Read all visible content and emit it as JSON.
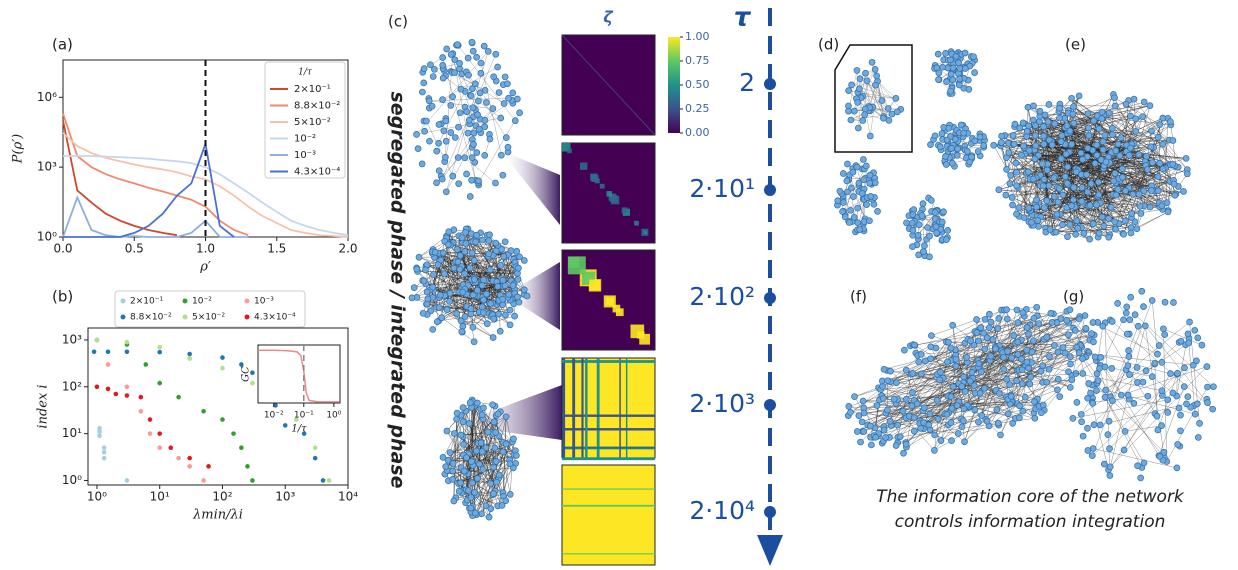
{
  "chart_data": [
    {
      "type": "line",
      "panel_label": "(a)",
      "xlabel": "ρ′",
      "ylabel": "P(ρ′)",
      "log_y": true,
      "vline": 1,
      "legend_title": "1/τ",
      "legend": "upper right",
      "x": [
        0,
        0.1,
        0.2,
        0.3,
        0.4,
        0.5,
        0.6,
        0.7,
        0.8,
        0.9,
        1.0,
        1.1,
        1.2,
        1.3,
        1.4,
        1.5,
        1.6,
        1.7,
        1.8,
        1.9,
        2.0
      ],
      "xlim": [
        0,
        2
      ],
      "ylim": [
        1,
        40000000
      ],
      "xticks": [
        {
          "value": 0,
          "label": "0.0"
        },
        0.5,
        {
          "value": 1,
          "label": "1.0"
        },
        1.5,
        {
          "value": 2,
          "label": "2.0"
        }
      ],
      "yticks": [
        {
          "value": 1,
          "label": "10⁰"
        },
        {
          "value": 1000,
          "label": "10³"
        },
        {
          "value": 1000000,
          "label": "10⁶"
        }
      ],
      "series": [
        {
          "name": "2×10⁻¹",
          "color": "#d2452f",
          "values": [
            100000,
            100,
            30,
            10,
            5,
            3,
            2,
            1.5,
            1.2,
            null,
            null,
            null,
            null,
            null,
            null,
            null,
            null,
            null,
            null,
            null,
            null
          ]
        },
        {
          "name": "8.8×10⁻²",
          "color": "#ee8a6a",
          "values": [
            200000,
            3000,
            1000,
            500,
            300,
            200,
            130,
            90,
            60,
            40,
            20,
            5,
            2,
            1.2,
            null,
            null,
            null,
            null,
            null,
            null,
            null
          ]
        },
        {
          "name": "5×10⁻²",
          "color": "#f6c2a8",
          "values": [
            30000,
            8000,
            4000,
            2500,
            1800,
            1300,
            1000,
            800,
            600,
            400,
            300,
            150,
            60,
            20,
            8,
            4,
            2,
            1.5,
            1.2,
            1.1,
            1
          ]
        },
        {
          "name": "10⁻²",
          "color": "#c6d6ee",
          "values": [
            3000,
            3000,
            3000,
            2800,
            2700,
            2500,
            2300,
            2000,
            1800,
            1500,
            1000,
            500,
            200,
            80,
            30,
            12,
            5,
            3,
            2,
            1.5,
            1.2
          ]
        },
        {
          "name": "10⁻³",
          "color": "#8eaee2",
          "values": [
            1,
            50,
            2,
            1.2,
            1,
            1.1,
            1,
            1,
            1,
            1.5,
            5,
            1,
            1,
            1,
            null,
            null,
            null,
            null,
            null,
            null,
            null
          ]
        },
        {
          "name": "4.3×10⁻⁴",
          "color": "#4a6fd6",
          "values": [
            1,
            1,
            1,
            1,
            1,
            1.5,
            3,
            10,
            60,
            200,
            10000,
            3,
            1,
            null,
            null,
            null,
            null,
            null,
            null,
            null,
            null
          ]
        }
      ]
    },
    {
      "type": "scatter",
      "panel_label": "(b)",
      "xlabel": "λmin/λi",
      "ylabel": "index i",
      "log_x": true,
      "log_y": true,
      "legend": "upper center",
      "xlim": [
        0.72,
        10000
      ],
      "ylim": [
        0.8,
        1800
      ],
      "xticks": [
        {
          "value": 1,
          "label": "10⁰"
        },
        {
          "value": 10,
          "label": "10¹"
        },
        {
          "value": 100,
          "label": "10²"
        },
        {
          "value": 1000,
          "label": "10³"
        },
        {
          "value": 10000,
          "label": "10⁴"
        }
      ],
      "yticks": [
        {
          "value": 1,
          "label": "10⁰"
        },
        {
          "value": 10,
          "label": "10¹"
        },
        {
          "value": 100,
          "label": "10²"
        },
        {
          "value": 1000,
          "label": "10³"
        }
      ],
      "series": [
        {
          "name": "2×10⁻¹",
          "color": "#a6cee3",
          "x": [
            1.1,
            1.1,
            1.1,
            1.3,
            1.3,
            1.3,
            3
          ],
          "values": [
            13,
            11,
            9,
            5,
            4,
            3,
            1
          ]
        },
        {
          "name": "8.8×10⁻²",
          "color": "#1f78b4",
          "x": [
            0.9,
            1.5,
            3,
            10,
            30,
            100,
            200,
            300,
            700,
            1000,
            2000,
            3000,
            4000
          ],
          "values": [
            560,
            560,
            560,
            550,
            500,
            420,
            300,
            200,
            40,
            15,
            10,
            3,
            1
          ]
        },
        {
          "name": "10⁻²",
          "color": "#33a02c",
          "x": [
            1,
            3,
            6,
            10,
            20,
            50,
            100,
            150,
            200,
            250,
            300
          ],
          "values": [
            1000,
            800,
            300,
            120,
            60,
            30,
            20,
            10,
            5,
            2,
            1
          ]
        },
        {
          "name": "5×10⁻²",
          "color": "#b2df8a",
          "x": [
            1,
            3,
            10,
            30,
            100,
            300,
            1000,
            1500,
            3000,
            5000
          ],
          "values": [
            1000,
            900,
            700,
            400,
            250,
            120,
            50,
            20,
            5,
            1
          ]
        },
        {
          "name": "10⁻³",
          "color": "#fb9a99",
          "x": [
            1.5,
            3,
            5,
            7,
            10,
            20,
            30,
            50
          ],
          "values": [
            300,
            100,
            30,
            10,
            5,
            3,
            2,
            1
          ]
        },
        {
          "name": "4.3×10⁻⁴",
          "color": "#e31a1c",
          "x": [
            1,
            1.5,
            2,
            3,
            5,
            7,
            10,
            15,
            30,
            60
          ],
          "values": [
            100,
            90,
            70,
            65,
            60,
            20,
            10,
            5,
            3,
            2
          ]
        }
      ]
    },
    {
      "type": "line",
      "xlabel": "1/τ",
      "ylabel": "GC",
      "log_x": true,
      "vline": 0.1,
      "x": [
        0.003,
        0.01,
        0.03,
        0.06,
        0.08,
        0.1,
        0.12,
        0.15,
        0.3,
        1,
        1.5
      ],
      "xlim": [
        0.003,
        1.6
      ],
      "ylim": [
        0,
        1.1
      ],
      "xticks": [
        {
          "value": 0.01,
          "label": "10⁻²"
        },
        {
          "value": 0.1,
          "label": "10⁻¹"
        },
        {
          "value": 1,
          "label": "10⁰"
        }
      ],
      "series": [
        {
          "color": "#e98b8b",
          "values": [
            1,
            1,
            0.99,
            0.97,
            0.9,
            0.6,
            0.2,
            0.05,
            0.02,
            0.02,
            0.02
          ]
        }
      ]
    }
  ],
  "panel_c": {
    "label": "(c)",
    "side_title": "segregated phase / integrated phase",
    "zeta": "ζ",
    "tau": "τ",
    "colorbar_ticks": [
      {
        "value": 0,
        "label": "0.00"
      },
      {
        "value": 0.25,
        "label": "0.25"
      },
      {
        "value": 0.5,
        "label": "0.50"
      },
      {
        "value": 0.75,
        "label": "0.75"
      },
      {
        "value": 1,
        "label": "1.00"
      }
    ],
    "tau_labels": [
      "2",
      "2·10¹",
      "2·10²",
      "2·10³",
      "2·10⁴"
    ]
  },
  "panels": {
    "d": "(d)",
    "e": "(e)",
    "f": "(f)",
    "g": "(g)"
  },
  "caption": [
    "The information core of the network",
    "controls information integration"
  ]
}
